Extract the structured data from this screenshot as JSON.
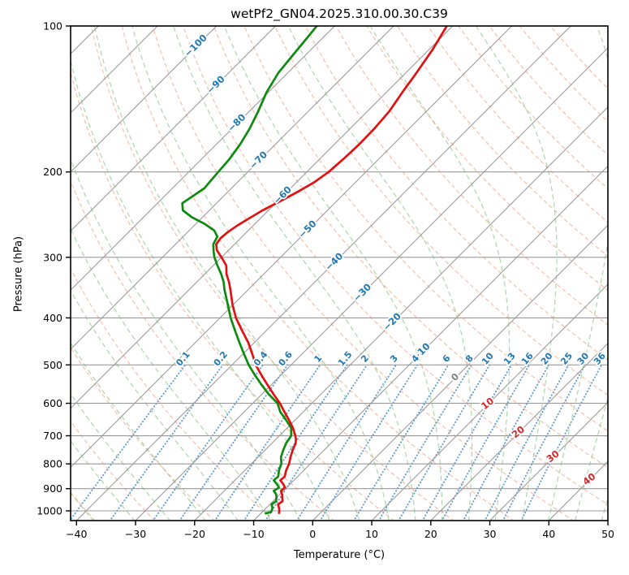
{
  "title": "wetPf2_GN04.2025.310.00.30.C39",
  "axes": {
    "x": {
      "label": "Temperature (°C)",
      "min": -41,
      "max": 50,
      "ticks": [
        -40,
        -30,
        -20,
        -10,
        0,
        10,
        20,
        30,
        40,
        50
      ]
    },
    "y": {
      "label": "Pressure (hPa)",
      "scale": "log",
      "min": 100,
      "max": 1050,
      "ticks": [
        100,
        200,
        300,
        400,
        500,
        600,
        700,
        800,
        900,
        1000
      ]
    }
  },
  "colors": {
    "temperature": "#e01111",
    "dewpoint": "#0e8a10",
    "isotherm": "#999999",
    "isobar": "#999999",
    "dry_adiabat": "#f0926d",
    "moist_adiabat": "#8cc98c",
    "mixing_ratio": "#3a87c8",
    "label_negative": "#1f77b4",
    "label_zero": "#808080",
    "label_positive": "#d62728",
    "frame": "#000000"
  },
  "chart_data": {
    "type": "line",
    "subtype": "skew-t-log-p",
    "title": "wetPf2_GN04.2025.310.00.30.C39",
    "xlabel": "Temperature (°C)",
    "ylabel": "Pressure (hPa)",
    "xlim": [
      -41,
      50
    ],
    "ylim": [
      1050,
      100
    ],
    "skew_deg": 45,
    "series": [
      {
        "name": "temperature",
        "color": "#e01111",
        "pressure_hPa": [
          100,
          112,
          125,
          137,
          150,
          163,
          175,
          188,
          200,
          210,
          220,
          230,
          240,
          250,
          258,
          266,
          274,
          282,
          290,
          300,
          312,
          325,
          337,
          350,
          375,
          400,
          425,
          450,
          475,
          500,
          525,
          550,
          575,
          600,
          625,
          650,
          675,
          700,
          712,
          725,
          750,
          775,
          800,
          825,
          850,
          865,
          880,
          895,
          910,
          925,
          940,
          955,
          970,
          985,
          1000,
          1010
        ],
        "values_C": [
          -61,
          -59.4,
          -58.2,
          -57.3,
          -56.3,
          -55.9,
          -55.8,
          -56,
          -56.3,
          -57,
          -58.2,
          -59.6,
          -61,
          -62,
          -62.7,
          -63.2,
          -63.4,
          -63.1,
          -62,
          -60,
          -57.8,
          -56.3,
          -54.6,
          -53,
          -50.2,
          -47.3,
          -44.1,
          -41,
          -38.4,
          -36,
          -33.3,
          -30.6,
          -28,
          -25.4,
          -23.2,
          -21,
          -19,
          -17.3,
          -16.6,
          -16,
          -15.3,
          -14.5,
          -13.6,
          -13,
          -12.2,
          -12.3,
          -11.2,
          -10.3,
          -10.4,
          -9.6,
          -9.0,
          -8.4,
          -8.6,
          -7.9,
          -7.3,
          -7.0
        ]
      },
      {
        "name": "dewpoint",
        "color": "#0e8a10",
        "pressure_hPa": [
          100,
          112,
          125,
          137,
          150,
          163,
          175,
          188,
          200,
          208,
          216,
          224,
          232,
          240,
          248,
          256,
          264,
          272,
          282,
          292,
          300,
          312,
          325,
          337,
          350,
          375,
          400,
          425,
          450,
          475,
          500,
          525,
          550,
          575,
          600,
          625,
          650,
          675,
          700,
          725,
          750,
          775,
          800,
          825,
          850,
          865,
          880,
          895,
          910,
          925,
          940,
          955,
          970,
          985,
          1000,
          1006,
          1012
        ],
        "values_C": [
          -83,
          -82.3,
          -81.6,
          -80.3,
          -78.5,
          -77,
          -76,
          -75.3,
          -75,
          -74.8,
          -74.6,
          -75.2,
          -75.8,
          -74.5,
          -71.8,
          -68.5,
          -65.8,
          -64.2,
          -63.6,
          -62.3,
          -61.2,
          -59.3,
          -57.2,
          -55.5,
          -54,
          -51,
          -48.2,
          -45.3,
          -42.5,
          -39.8,
          -37.2,
          -34.4,
          -31.6,
          -28.8,
          -25.8,
          -23.9,
          -21.5,
          -19.3,
          -18,
          -17.6,
          -16.9,
          -16.1,
          -14.9,
          -14.2,
          -13.3,
          -13.4,
          -12.3,
          -11.3,
          -11.6,
          -10.6,
          -10.0,
          -9.5,
          -9.7,
          -9.0,
          -8.6,
          -8.5,
          -9.2
        ]
      }
    ],
    "reference_lines": {
      "isobars_hPa": [
        100,
        200,
        300,
        400,
        500,
        600,
        700,
        800,
        900,
        1000
      ],
      "isotherms_C": {
        "start": -120,
        "end": 50,
        "step": 10
      },
      "dry_adiabats_theta_C": {
        "start": -40,
        "end": 170,
        "step": 10
      },
      "moist_adiabats_surface_C": [
        -60,
        -52,
        -44,
        -37,
        -30,
        -24,
        -18,
        -12.5,
        -7,
        -2,
        3,
        8,
        13,
        17.5,
        22,
        26.5,
        31,
        35.5,
        40,
        44.5,
        49
      ],
      "mixing_ratio_g_kg": [
        0.1,
        0.2,
        0.4,
        0.6,
        1,
        1.5,
        2,
        3,
        4,
        6,
        8,
        10,
        13,
        16,
        20,
        25,
        30,
        36
      ],
      "mixing_ratio_top_hPa": 500,
      "mixing_ratio_label_values": [
        "0.1",
        "0.2",
        "0.4",
        "0.6",
        "1",
        "1.5",
        "2",
        "3",
        "4",
        "6",
        "8",
        "10",
        "13",
        "16",
        "20",
        "25",
        "30",
        "36"
      ]
    },
    "isotherm_labels": [
      {
        "t": -100,
        "y": 55
      },
      {
        "t": -90,
        "y": 103
      },
      {
        "t": -80,
        "y": 150
      },
      {
        "t": -70,
        "y": 196
      },
      {
        "t": -60,
        "y": 239
      },
      {
        "t": -50,
        "y": 281
      },
      {
        "t": -40,
        "y": 321
      },
      {
        "t": -30,
        "y": 359
      },
      {
        "t": -20,
        "y": 395
      },
      {
        "t": -10,
        "y": 432
      },
      {
        "t": 0,
        "y": 463
      },
      {
        "t": 10,
        "y": 496
      },
      {
        "t": 20,
        "y": 531
      },
      {
        "t": 30,
        "y": 561
      },
      {
        "t": 40,
        "y": 589
      }
    ]
  }
}
